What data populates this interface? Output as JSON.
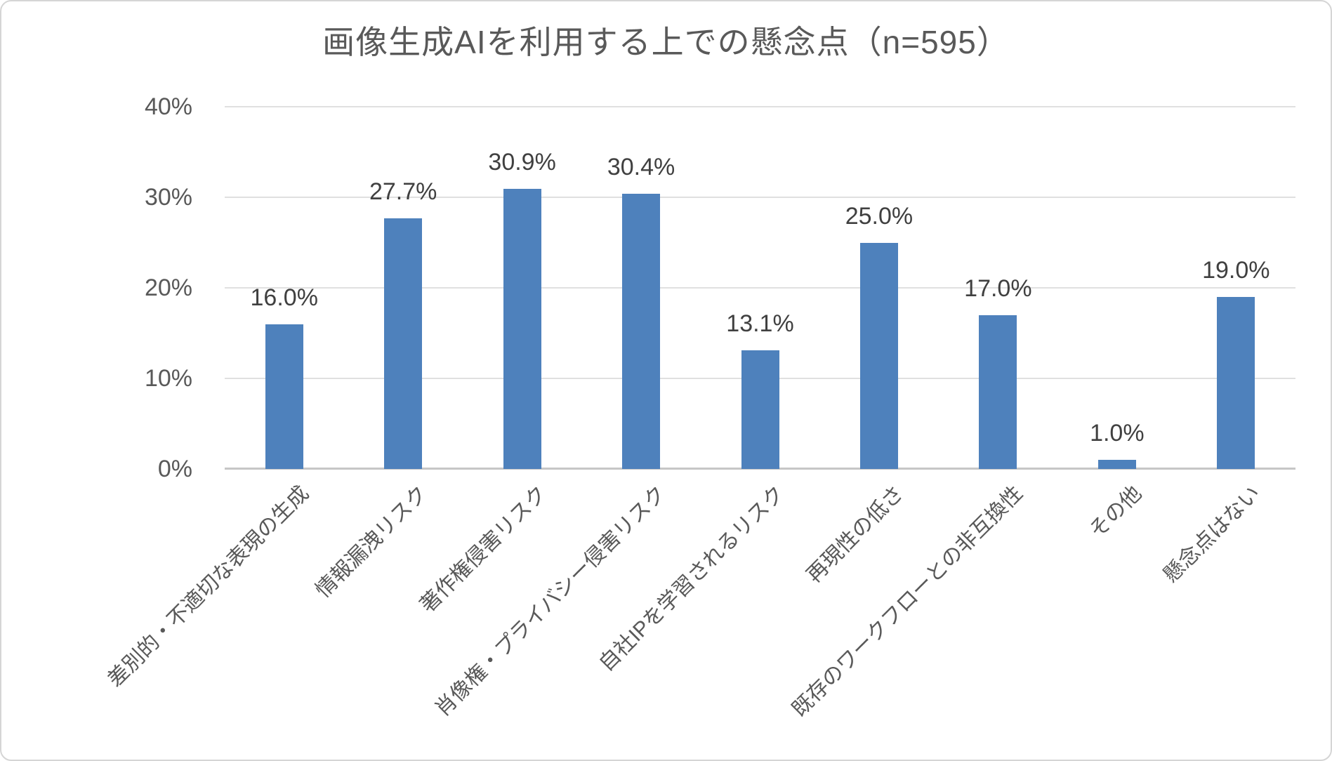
{
  "chart_data": {
    "type": "bar",
    "title": "画像生成AIを利用する上での懸念点（n=595）",
    "categories": [
      "差別的・不適切な表現の生成",
      "情報漏洩リスク",
      "著作権侵害リスク",
      "肖像権・プライバシー侵害リスク",
      "自社IPを学習されるリスク",
      "再現性の低さ",
      "既存のワークフローとの非互換性",
      "その他",
      "懸念点はない"
    ],
    "values": [
      16.0,
      27.7,
      30.9,
      30.4,
      13.1,
      25.0,
      17.0,
      1.0,
      19.0
    ],
    "data_labels": [
      "16.0%",
      "27.7%",
      "30.9%",
      "30.4%",
      "13.1%",
      "25.0%",
      "17.0%",
      "1.0%",
      "19.0%"
    ],
    "y_ticks": [
      {
        "value": 40,
        "label": "40%"
      },
      {
        "value": 30,
        "label": "30%"
      },
      {
        "value": 20,
        "label": "20%"
      },
      {
        "value": 10,
        "label": "10%"
      },
      {
        "value": 0,
        "label": "0%"
      }
    ],
    "ylim": [
      0,
      40
    ],
    "xlabel": "",
    "ylabel": "",
    "grid": true,
    "legend": "none",
    "bar_color": "#4E81BC",
    "title_color": "#595959",
    "label_color": "#404040",
    "tick_color": "#595959"
  }
}
